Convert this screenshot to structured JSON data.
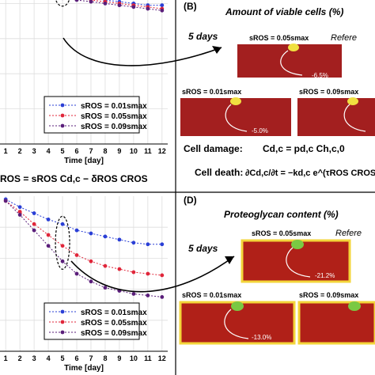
{
  "panelB": {
    "letter": "(B)",
    "title": "Amount of viable cells (%)",
    "days": "5 days",
    "sim_labels": [
      "sROS = 0.05smax",
      "sROS = 0.01smax",
      "sROS = 0.09smax"
    ],
    "reference": "Refere",
    "pct": [
      "-6.5%",
      "-5.0%",
      "-8.x%"
    ],
    "eq_damage_label": "Cell damage:",
    "eq_damage": "Cd,c = pd,c Ch,c,0",
    "eq_death_label": "Cell death:",
    "eq_death": "∂Cd,c/∂t = −kd,c e^(τROS CROS) Cd,c"
  },
  "panelD": {
    "letter": "(D)",
    "title": "Proteoglycan content (%)",
    "days": "5 days",
    "sim_labels": [
      "sROS = 0.05smax",
      "sROS = 0.01smax",
      "sROS = 0.09smax"
    ],
    "reference": "Refere",
    "pct": [
      "-21.2%",
      "-13.0%",
      "-2x.x%"
    ]
  },
  "bottom_eq_A": "ROS = sROS Cd,c − δROS CROS",
  "colors": {
    "blue": "#2a3fd6",
    "red": "#e0263a",
    "purple": "#5a1e7a",
    "tissue": "#a31f1f"
  },
  "chart_data": [
    {
      "type": "line",
      "id": "A",
      "xlabel": "Time [day]",
      "x": [
        1,
        2,
        3,
        4,
        5,
        6,
        7,
        8,
        9,
        10,
        11,
        12
      ],
      "x_ticks": [
        1,
        2,
        3,
        4,
        5,
        6,
        7,
        8,
        9,
        10,
        11,
        12
      ],
      "ylim": [
        0,
        1
      ],
      "grid": true,
      "legend_position": "bottom-right",
      "series": [
        {
          "name": "sROS = 0.01smax",
          "color": "#2a3fd6",
          "values": [
            0.96,
            0.91,
            0.89,
            0.87,
            0.85,
            0.84,
            0.83,
            0.82,
            0.81,
            0.8,
            0.79,
            0.79
          ]
        },
        {
          "name": "sROS = 0.05smax",
          "color": "#e0263a",
          "values": [
            0.95,
            0.9,
            0.88,
            0.86,
            0.84,
            0.83,
            0.82,
            0.81,
            0.8,
            0.79,
            0.78,
            0.77
          ]
        },
        {
          "name": "sROS = 0.09smax",
          "color": "#5a1e7a",
          "values": [
            0.95,
            0.89,
            0.87,
            0.85,
            0.83,
            0.82,
            0.81,
            0.8,
            0.79,
            0.78,
            0.77,
            0.76
          ]
        }
      ]
    },
    {
      "type": "line",
      "id": "C",
      "xlabel": "Time [day]",
      "x": [
        1,
        2,
        3,
        4,
        5,
        6,
        7,
        8,
        9,
        10,
        11,
        12
      ],
      "x_ticks": [
        1,
        2,
        3,
        4,
        5,
        6,
        7,
        8,
        9,
        10,
        11,
        12
      ],
      "ylim": [
        0,
        1
      ],
      "grid": true,
      "legend_position": "bottom-right",
      "series": [
        {
          "name": "sROS = 0.01smax",
          "color": "#2a3fd6",
          "values": [
            0.98,
            0.93,
            0.89,
            0.85,
            0.82,
            0.78,
            0.76,
            0.74,
            0.72,
            0.7,
            0.69,
            0.69
          ]
        },
        {
          "name": "sROS = 0.05smax",
          "color": "#e0263a",
          "values": [
            0.97,
            0.9,
            0.82,
            0.75,
            0.68,
            0.62,
            0.58,
            0.55,
            0.53,
            0.51,
            0.5,
            0.49
          ]
        },
        {
          "name": "sROS = 0.09smax",
          "color": "#5a1e7a",
          "values": [
            0.97,
            0.88,
            0.78,
            0.68,
            0.58,
            0.5,
            0.45,
            0.41,
            0.39,
            0.37,
            0.36,
            0.35
          ]
        }
      ]
    }
  ]
}
